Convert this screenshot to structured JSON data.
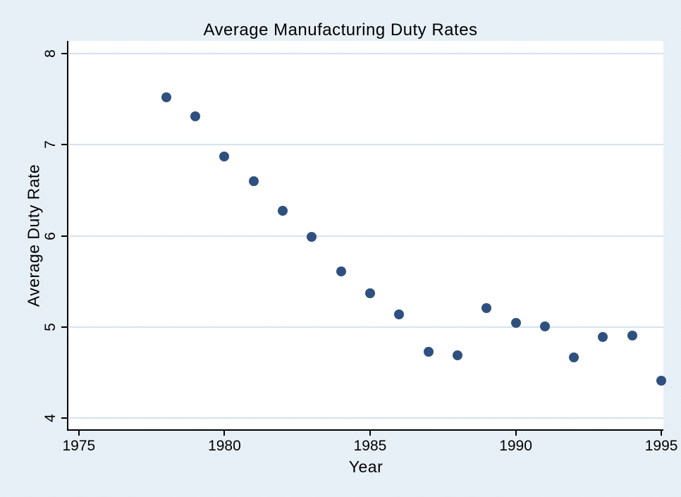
{
  "chart_data": {
    "type": "scatter",
    "title": "Average Manufacturing Duty Rates",
    "xlabel": "Year",
    "ylabel": "Average Duty Rate",
    "x": [
      1978,
      1979,
      1980,
      1981,
      1982,
      1983,
      1984,
      1985,
      1986,
      1987,
      1988,
      1989,
      1990,
      1991,
      1992,
      1993,
      1994,
      1995
    ],
    "y": [
      7.52,
      7.31,
      6.87,
      6.6,
      6.28,
      5.99,
      5.61,
      5.37,
      5.14,
      4.73,
      4.69,
      5.21,
      5.05,
      5.01,
      4.67,
      4.89,
      4.91,
      4.41
    ],
    "x_ticks": [
      1975,
      1980,
      1985,
      1990,
      1995
    ],
    "y_ticks": [
      4,
      5,
      6,
      7,
      8
    ],
    "xlim": [
      1974.64,
      1995.07
    ],
    "ylim": [
      3.88,
      8.14
    ],
    "grid": "horizontal-only",
    "gridline_style": "dotted",
    "legend": "none",
    "marker_shape": "filled-circle",
    "series_count": 1,
    "colors": {
      "figure_background": "#e7eff6",
      "plot_background": "#ffffff",
      "gridline": "#a9c7e1",
      "axis_line": "#000000",
      "text": "#000000",
      "marker": "#1d4173"
    }
  }
}
